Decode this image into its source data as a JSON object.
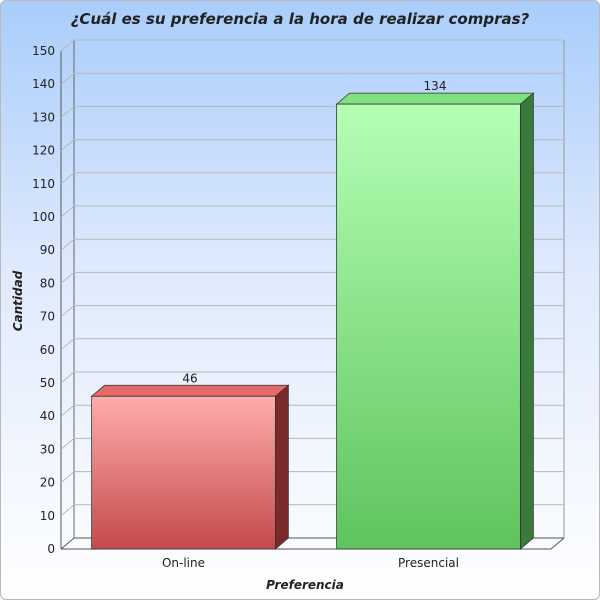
{
  "chart_data": {
    "type": "bar",
    "title": "¿Cuál es su preferencia a la hora de realizar compras?",
    "xlabel": "Preferencia",
    "ylabel": "Cantidad",
    "categories": [
      "On-line",
      "Presencial"
    ],
    "values": [
      46,
      134
    ],
    "ylim": [
      0,
      150
    ],
    "ytick_step": 10,
    "grid": true,
    "style": "3d",
    "bar_colors": [
      {
        "top": "#ffadad",
        "bottom": "#c44a4a",
        "side": "#7a2a2a",
        "cap": "#e56a6a"
      },
      {
        "top": "#b5ffb5",
        "bottom": "#5ec45e",
        "side": "#3a7a3a",
        "cap": "#7ee07e"
      }
    ]
  }
}
